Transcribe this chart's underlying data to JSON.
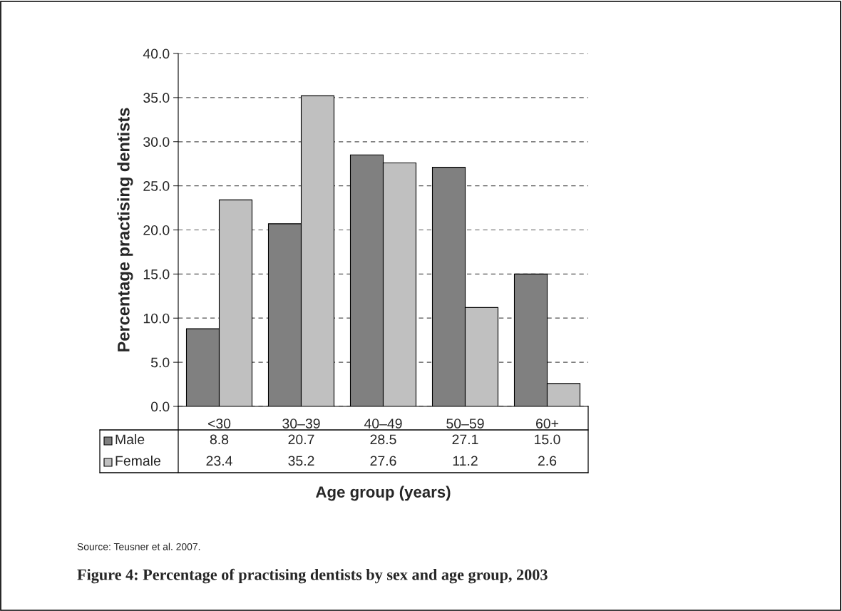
{
  "chart_data": {
    "type": "bar",
    "title": "Figure 4: Percentage of practising dentists by sex and age group, 2003",
    "xlabel": "Age group (years)",
    "ylabel": "Percentage practising dentists",
    "categories": [
      "<30",
      "30–39",
      "40–49",
      "50–59",
      "60+"
    ],
    "series": [
      {
        "name": "Male",
        "color": "#808080",
        "values": [
          8.8,
          20.7,
          28.5,
          27.1,
          15.0
        ],
        "value_labels": [
          "8.8",
          "20.7",
          "28.5",
          "27.1",
          "15.0"
        ]
      },
      {
        "name": "Female",
        "color": "#c0c0c0",
        "values": [
          23.4,
          35.2,
          27.6,
          11.2,
          2.6
        ],
        "value_labels": [
          "23.4",
          "35.2",
          "27.6",
          "11.2",
          "2.6"
        ]
      }
    ],
    "ylim": [
      0,
      40
    ],
    "yticks": [
      {
        "value": 0,
        "label": "0.0"
      },
      {
        "value": 5,
        "label": "5.0"
      },
      {
        "value": 10,
        "label": "10.0"
      },
      {
        "value": 15,
        "label": "15.0"
      },
      {
        "value": 20,
        "label": "20.0"
      },
      {
        "value": 25,
        "label": "25.0"
      },
      {
        "value": 30,
        "label": "30.0"
      },
      {
        "value": 35,
        "label": "35.0"
      },
      {
        "value": 40,
        "label": "40.0"
      }
    ],
    "grid": "y",
    "legend": "bottom",
    "annotations": [
      "Source: Teusner et al. 2007."
    ]
  }
}
